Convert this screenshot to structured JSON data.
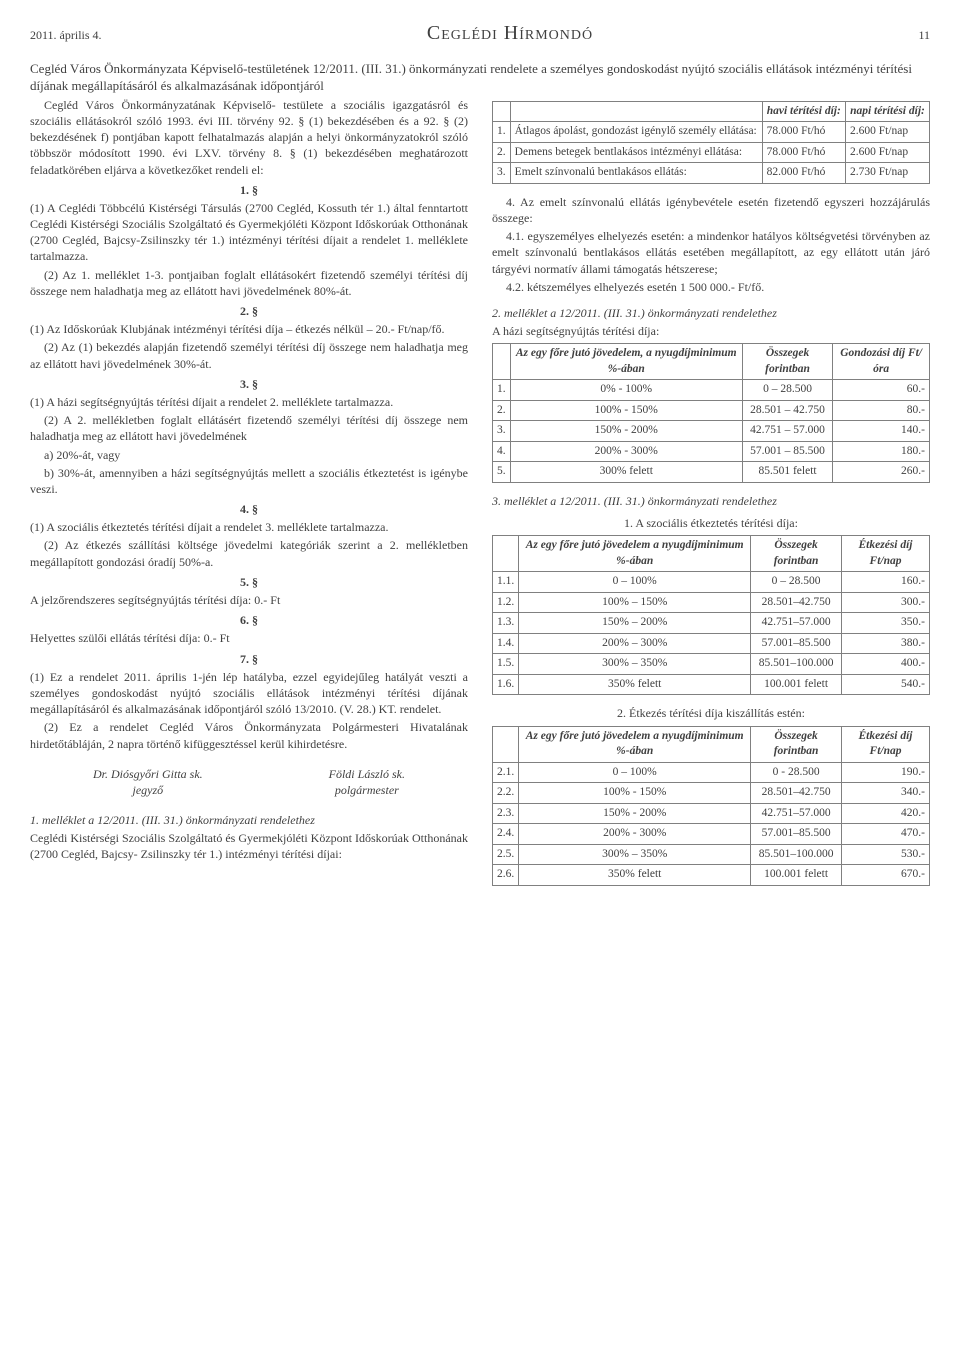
{
  "header": {
    "date": "2011. április 4.",
    "title": "Ceglédi Hírmondó",
    "page": "11"
  },
  "heading": "Cegléd Város Önkormányzata Képviselő-testületének 12/2011. (III. 31.) önkormányzati rendelete a személyes gondoskodást nyújtó szociális ellátások intézményi térítési díjának megállapításáról és alkalmazásának időpontjáról",
  "left": {
    "intro": "Cegléd Város Önkormányzatának Képviselő- testülete a szociális igazgatásról és szociális ellátásokról szóló 1993. évi III. törvény 92. § (1) bekezdésében és a 92. § (2) bekezdésének f) pontjában kapott felhatalmazás alapján a helyi önkormányzatokról szóló többször módosított 1990. évi LXV. törvény 8. § (1) bekezdésében meghatározott feladatkörében eljárva a következőket rendeli el:",
    "s1_num": "1. §",
    "s1_p1": "(1) A Ceglédi Többcélú Kistérségi Társulás (2700 Cegléd, Kossuth tér 1.) által fenntartott Ceglédi Kistérségi Szociális Szolgáltató és Gyermekjóléti Központ Időskorúak Otthonának (2700 Cegléd, Bajcsy-Zsilinszky tér 1.) intézményi térítési díjait a rendelet 1. melléklete tartalmazza.",
    "s1_p2": "(2) Az 1. melléklet 1-3. pontjaiban foglalt ellátásokért fizetendő személyi térítési díj összege nem haladhatja meg az ellátott havi jövedelmének 80%-át.",
    "s2_num": "2. §",
    "s2_p1": "(1) Az Időskorúak Klubjának intézményi térítési díja – étkezés nélkül – 20.- Ft/nap/fő.",
    "s2_p2": "(2) Az (1) bekezdés alapján fizetendő személyi térítési díj összege nem haladhatja meg az ellátott havi jövedelmének 30%-át.",
    "s3_num": "3. §",
    "s3_p1": "(1) A házi segítségnyújtás térítési díjait a rendelet 2. melléklete tartalmazza.",
    "s3_p2": "(2) A 2. mellékletben foglalt ellátásért fizetendő személyi térítési díj összege nem haladhatja meg az ellátott havi jövedelmének",
    "s3_p2a": "a) 20%-át, vagy",
    "s3_p2b": "b) 30%-át, amennyiben a házi segítségnyújtás mellett a szociális étkeztetést is igénybe veszi.",
    "s4_num": "4. §",
    "s4_p1": "(1) A szociális étkeztetés térítési díjait a rendelet 3. melléklete tartalmazza.",
    "s4_p2": "(2) Az étkezés szállítási költsége jövedelmi kategóriák szerint a 2. mellékletben megállapított gondozási óradíj 50%-a.",
    "s5_num": "5. §",
    "s5_p": "A jelzőrendszeres segítségnyújtás térítési díja: 0.- Ft",
    "s6_num": "6. §",
    "s6_p": "Helyettes szülői ellátás térítési díja: 0.- Ft",
    "s7_num": "7. §",
    "s7_p1": "(1) Ez a rendelet 2011. április 1-jén lép hatályba, ezzel egyidejűleg hatályát veszti a személyes gondoskodást nyújtó szociális ellátások intézményi térítési díjának megállapításáról és alkalmazásának időpontjáról szóló 13/2010. (V. 28.) KT. rendelet.",
    "s7_p2": "(2) Ez a rendelet Cegléd Város Önkormányzata Polgármesteri Hivatalának hirdetőtábláján, 2 napra történő kifüggesztéssel kerül kihirdetésre.",
    "sig1_name": "Dr. Diósgyőri Gitta sk.",
    "sig1_role": "jegyző",
    "sig2_name": "Földi László sk.",
    "sig2_role": "polgármester",
    "mell1_title": "1. melléklet a 12/2011. (III. 31.) önkormányzati rendelethez",
    "mell1_body": "Ceglédi Kistérségi Szociális Szolgáltató és Gyermekjóléti Központ Időskorúak Otthonának (2700 Cegléd, Bajcsy- Zsilinszky tér 1.) intézményi térítési díjai:"
  },
  "right": {
    "table1": {
      "head_havi": "havi térítési díj:",
      "head_napi": "napi térítési díj:",
      "rows": [
        {
          "n": "1.",
          "label": "Átlagos ápolást, gondozást igénylő személy ellátása:",
          "havi": "78.000 Ft/hó",
          "napi": "2.600 Ft/nap"
        },
        {
          "n": "2.",
          "label": "Demens betegek bentlakásos intézményi ellátása:",
          "havi": "78.000 Ft/hó",
          "napi": "2.600 Ft/nap"
        },
        {
          "n": "3.",
          "label": "Emelt színvonalú bentlakásos ellátás:",
          "havi": "82.000 Ft/hó",
          "napi": "2.730 Ft/nap"
        }
      ]
    },
    "para4": "4. Az emelt színvonalú ellátás igénybevétele esetén fizetendő egyszeri hozzájárulás összege:",
    "para4_1": "4.1. egyszemélyes elhelyezés esetén: a mindenkor hatályos költségvetési törvényben az emelt színvonalú bentlakásos ellátás esetében megállapított, az egy ellátott után járó tárgyévi normatív állami támogatás hétszerese;",
    "para4_2": "4.2. kétszemélyes elhelyezés esetén 1 500 000.- Ft/fő.",
    "mell2_title": "2. melléklet a 12/2011. (III. 31.) önkormányzati rendelethez",
    "mell2_sub": "A házi segítségnyújtás térítési díja:",
    "table2": {
      "h1": "Az egy főre jutó jövedelem, a nyugdíjminimum %-ában",
      "h2": "Összegek forintban",
      "h3": "Gondozási díj Ft/óra",
      "rows": [
        {
          "n": "1.",
          "a": "0% - 100%",
          "b": "0 – 28.500",
          "c": "60.-"
        },
        {
          "n": "2.",
          "a": "100% - 150%",
          "b": "28.501 – 42.750",
          "c": "80.-"
        },
        {
          "n": "3.",
          "a": "150% - 200%",
          "b": "42.751 – 57.000",
          "c": "140.-"
        },
        {
          "n": "4.",
          "a": "200% - 300%",
          "b": "57.001 – 85.500",
          "c": "180.-"
        },
        {
          "n": "5.",
          "a": "300% felett",
          "b": "85.501 felett",
          "c": "260.-"
        }
      ]
    },
    "mell3_title": "3. melléklet a 12/2011. (III. 31.) önkormányzati rendelethez",
    "mell3_sub1": "1. A szociális étkeztetés térítési díja:",
    "table3": {
      "h1": "Az egy főre jutó jövedelem a nyugdíjminimum %-ában",
      "h2": "Összegek forintban",
      "h3": "Étkezési díj Ft/nap",
      "rows": [
        {
          "n": "1.1.",
          "a": "0 – 100%",
          "b": "0 – 28.500",
          "c": "160.-"
        },
        {
          "n": "1.2.",
          "a": "100% – 150%",
          "b": "28.501–42.750",
          "c": "300.-"
        },
        {
          "n": "1.3.",
          "a": "150% – 200%",
          "b": "42.751–57.000",
          "c": "350.-"
        },
        {
          "n": "1.4.",
          "a": "200% – 300%",
          "b": "57.001–85.500",
          "c": "380.-"
        },
        {
          "n": "1.5.",
          "a": "300% – 350%",
          "b": "85.501–100.000",
          "c": "400.-"
        },
        {
          "n": "1.6.",
          "a": "350% felett",
          "b": "100.001 felett",
          "c": "540.-"
        }
      ]
    },
    "mell3_sub2": "2. Étkezés térítési díja kiszállítás estén:",
    "table4": {
      "h1": "Az egy főre jutó jövedelem a nyugdíjminimum %-ában",
      "h2": "Összegek forintban",
      "h3": "Étkezési díj Ft/nap",
      "rows": [
        {
          "n": "2.1.",
          "a": "0 – 100%",
          "b": "0 - 28.500",
          "c": "190.-"
        },
        {
          "n": "2.2.",
          "a": "100% - 150%",
          "b": "28.501–42.750",
          "c": "340.-"
        },
        {
          "n": "2.3.",
          "a": "150% - 200%",
          "b": "42.751–57.000",
          "c": "420.-"
        },
        {
          "n": "2.4.",
          "a": "200% - 300%",
          "b": "57.001–85.500",
          "c": "470.-"
        },
        {
          "n": "2.5.",
          "a": "300% – 350%",
          "b": "85.501–100.000",
          "c": "530.-"
        },
        {
          "n": "2.6.",
          "a": "350% felett",
          "b": "100.001 felett",
          "c": "670.-"
        }
      ]
    }
  }
}
